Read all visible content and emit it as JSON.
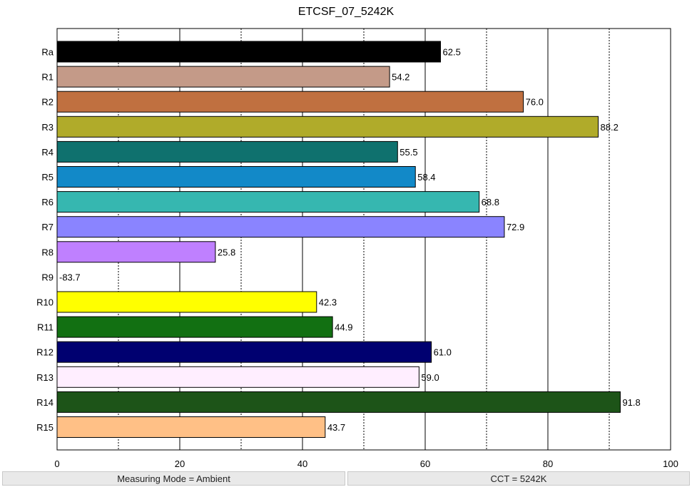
{
  "chart_data": {
    "type": "bar",
    "orientation": "horizontal",
    "title": "ETCSF_07_5242K",
    "xlabel": "",
    "ylabel": "",
    "xlim": [
      0,
      100
    ],
    "x_ticks": [
      0,
      20,
      40,
      60,
      80,
      100
    ],
    "grid": "vertical lines every 10 (solid at 20-multiples, dotted at odd tens)",
    "categories": [
      "Ra",
      "R1",
      "R2",
      "R3",
      "R4",
      "R5",
      "R6",
      "R7",
      "R8",
      "R9",
      "R10",
      "R11",
      "R12",
      "R13",
      "R14",
      "R15"
    ],
    "values": [
      62.5,
      54.2,
      76.0,
      88.2,
      55.5,
      58.4,
      68.8,
      72.9,
      25.8,
      -83.7,
      42.3,
      44.9,
      61.0,
      59.0,
      91.8,
      43.7
    ],
    "value_labels": [
      "62.5",
      "54.2",
      "76.0",
      "88.2",
      "55.5",
      "58.4",
      "68.8",
      "72.9",
      "25.8",
      "-83.7",
      "42.3",
      "44.9",
      "61.0",
      "59.0",
      "91.8",
      "43.7"
    ],
    "colors": [
      "#000000",
      "#c49a88",
      "#c07040",
      "#b0ab2a",
      "#0f716e",
      "#1289c8",
      "#36b7b0",
      "#8a84ff",
      "#bf80ff",
      "#ffffff",
      "#ffff00",
      "#127012",
      "#000070",
      "#ffeeff",
      "#1d5418",
      "#ffc086"
    ]
  },
  "status": {
    "measuring_mode": "Measuring Mode = Ambient",
    "cct": "CCT = 5242K"
  }
}
